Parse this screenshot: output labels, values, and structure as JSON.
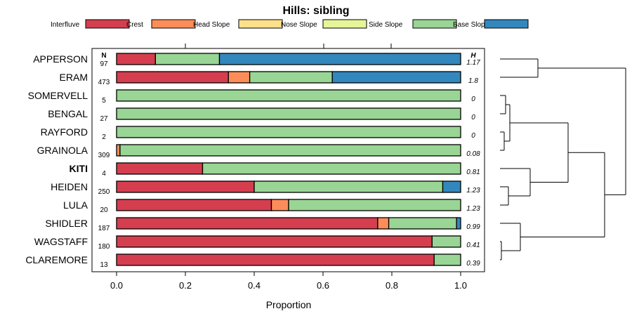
{
  "chart_data": {
    "type": "bar",
    "stacked": true,
    "orientation": "horizontal",
    "title": "Hills: sibling",
    "xlabel": "Proportion",
    "xlim": [
      0,
      1
    ],
    "xticks": [
      "0.0",
      "0.2",
      "0.4",
      "0.6",
      "0.8",
      "1.0"
    ],
    "n_header": "N",
    "h_header": "H",
    "legend": [
      {
        "name": "Interfluve",
        "color": "#D53E4F"
      },
      {
        "name": "Crest",
        "color": "#FC8D59"
      },
      {
        "name": "Head Slope",
        "color": "#FEE08B"
      },
      {
        "name": "Nose Slope",
        "color": "#E6F598"
      },
      {
        "name": "Side Slope",
        "color": "#99D594"
      },
      {
        "name": "Base Slope",
        "color": "#3288BD"
      }
    ],
    "rows": [
      {
        "label": "APPERSON",
        "bold": false,
        "n": "97",
        "h": "1.17",
        "values": [
          0.113,
          0,
          0,
          0,
          0.186,
          0.701
        ]
      },
      {
        "label": "ERAM",
        "bold": false,
        "n": "473",
        "h": "1.8",
        "values": [
          0.325,
          0.062,
          0,
          0,
          0.24,
          0.373
        ]
      },
      {
        "label": "SOMERVELL",
        "bold": false,
        "n": "5",
        "h": "0",
        "values": [
          0,
          0,
          0,
          0,
          1.0,
          0
        ]
      },
      {
        "label": "BENGAL",
        "bold": false,
        "n": "27",
        "h": "0",
        "values": [
          0,
          0,
          0,
          0,
          1.0,
          0
        ]
      },
      {
        "label": "RAYFORD",
        "bold": false,
        "n": "2",
        "h": "0",
        "values": [
          0,
          0,
          0,
          0,
          1.0,
          0
        ]
      },
      {
        "label": "GRAINOLA",
        "bold": false,
        "n": "309",
        "h": "0.08",
        "values": [
          0,
          0.01,
          0,
          0,
          0.99,
          0
        ]
      },
      {
        "label": "KITI",
        "bold": true,
        "n": "4",
        "h": "0.81",
        "values": [
          0.25,
          0,
          0,
          0,
          0.75,
          0
        ]
      },
      {
        "label": "HEIDEN",
        "bold": false,
        "n": "250",
        "h": "1.23",
        "values": [
          0.4,
          0,
          0,
          0,
          0.548,
          0.052
        ]
      },
      {
        "label": "LULA",
        "bold": false,
        "n": "20",
        "h": "1.23",
        "values": [
          0.45,
          0.05,
          0,
          0,
          0.5,
          0
        ]
      },
      {
        "label": "SHIDLER",
        "bold": false,
        "n": "187",
        "h": "0.99",
        "values": [
          0.759,
          0.032,
          0,
          0,
          0.197,
          0.012
        ]
      },
      {
        "label": "WAGSTAFF",
        "bold": false,
        "n": "180",
        "h": "0.41",
        "values": [
          0.917,
          0,
          0,
          0,
          0.083,
          0
        ]
      },
      {
        "label": "CLAREMORE",
        "bold": false,
        "n": "13",
        "h": "0.39",
        "values": [
          0.923,
          0,
          0,
          0,
          0.077,
          0
        ]
      }
    ]
  }
}
